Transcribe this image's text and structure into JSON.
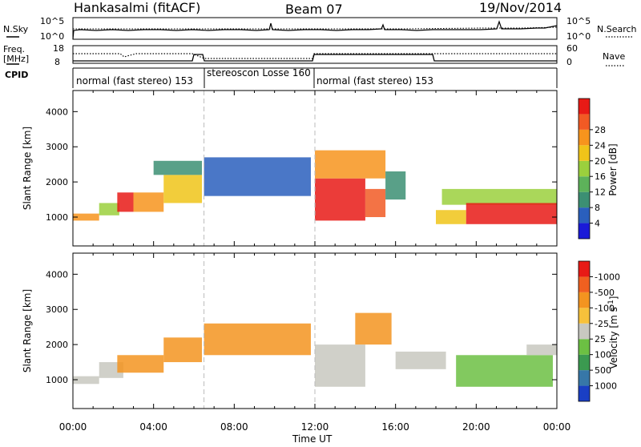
{
  "header": {
    "station": "Hankasalmi (fitACF)",
    "beam": "Beam 07",
    "date": "19/Nov/2014"
  },
  "strip": {
    "nsky_label": "N.Sky",
    "nsky_ticks": [
      "10^5",
      "10^0"
    ],
    "nsearch_label": "N.Search",
    "freq_label": "Freq.",
    "freq_unit": "[MHz]",
    "freq_ticks": [
      "18",
      "8"
    ],
    "nave_label": "Nave",
    "nave_ticks": [
      "60",
      "0"
    ],
    "cpid_label": "CPID",
    "cpid_segments": [
      {
        "label": "normal (fast stereo) 153",
        "start_h": 0,
        "end_h": 6.5
      },
      {
        "label": "stereoscon Losse 160",
        "start_h": 6.5,
        "end_h": 12
      },
      {
        "label": "normal (fast stereo) 153",
        "start_h": 12,
        "end_h": 24
      }
    ]
  },
  "chart_data": [
    {
      "type": "heatmap",
      "title": "",
      "xlabel": "Time UT",
      "ylabel": "Slant Range [km]",
      "xlim": [
        0,
        24
      ],
      "ylim": [
        180,
        4600
      ],
      "x_ticks": [
        "00:00",
        "04:00",
        "08:00",
        "12:00",
        "16:00",
        "20:00",
        "00:00"
      ],
      "y_ticks": [
        "1000",
        "2000",
        "3000",
        "4000"
      ],
      "y_tick_values": [
        1000,
        2000,
        3000,
        4000
      ],
      "colorbar": {
        "label": "Power [dB]",
        "ticks": [
          "4",
          "8",
          "12",
          "16",
          "20",
          "24",
          "28"
        ],
        "colors": [
          "#1a1ad8",
          "#2a5fbd",
          "#3c8f73",
          "#5db25a",
          "#9bd03d",
          "#f0c419",
          "#f7941d",
          "#f15a24",
          "#e81a16"
        ]
      },
      "echo_regions": [
        {
          "t0": 0.0,
          "t1": 1.3,
          "r0": 900,
          "r1": 1100,
          "level": 6
        },
        {
          "t0": 1.3,
          "t1": 2.3,
          "r0": 1050,
          "r1": 1400,
          "level": 4
        },
        {
          "t0": 2.2,
          "t1": 3.0,
          "r0": 1150,
          "r1": 1700,
          "level": 8
        },
        {
          "t0": 3.0,
          "t1": 4.5,
          "r0": 1150,
          "r1": 1700,
          "level": 6
        },
        {
          "t0": 4.5,
          "t1": 6.4,
          "r0": 1400,
          "r1": 2200,
          "level": 5
        },
        {
          "t0": 4.0,
          "t1": 6.4,
          "r0": 2200,
          "r1": 2600,
          "level": 2
        },
        {
          "t0": 6.5,
          "t1": 11.8,
          "r0": 1600,
          "r1": 2700,
          "level": 1
        },
        {
          "t0": 12.0,
          "t1": 14.5,
          "r0": 900,
          "r1": 2100,
          "level": 8
        },
        {
          "t0": 12.0,
          "t1": 15.5,
          "r0": 2100,
          "r1": 2900,
          "level": 6
        },
        {
          "t0": 14.5,
          "t1": 15.5,
          "r0": 1000,
          "r1": 1800,
          "level": 7
        },
        {
          "t0": 15.5,
          "t1": 16.5,
          "r0": 1500,
          "r1": 2300,
          "level": 2
        },
        {
          "t0": 18.0,
          "t1": 19.5,
          "r0": 800,
          "r1": 1200,
          "level": 5
        },
        {
          "t0": 18.3,
          "t1": 24.0,
          "r0": 1350,
          "r1": 1800,
          "level": 4
        },
        {
          "t0": 19.5,
          "t1": 24.0,
          "r0": 800,
          "r1": 1400,
          "level": 8
        }
      ]
    },
    {
      "type": "heatmap",
      "title": "",
      "xlabel": "Time UT",
      "ylabel": "Slant Range [km]",
      "xlim": [
        0,
        24
      ],
      "ylim": [
        180,
        4600
      ],
      "x_ticks": [
        "00:00",
        "04:00",
        "08:00",
        "12:00",
        "16:00",
        "20:00",
        "00:00"
      ],
      "y_ticks": [
        "1000",
        "2000",
        "3000",
        "4000"
      ],
      "y_tick_values": [
        1000,
        2000,
        3000,
        4000
      ],
      "colorbar": {
        "label": "Velocity [m s",
        "label_sup": "-1",
        "label_end": "]",
        "ticks": [
          "1000",
          "500",
          "100",
          "25",
          "-25",
          "-100",
          "-500",
          "-1000"
        ],
        "colors": [
          "#1a3fc4",
          "#3777a8",
          "#3b9a50",
          "#6cc043",
          "#c8c8c0",
          "#f7c13b",
          "#f39420",
          "#f06020",
          "#e81a16"
        ]
      },
      "echo_regions": [
        {
          "t0": 0.0,
          "t1": 1.3,
          "r0": 880,
          "r1": 1100,
          "level": 4
        },
        {
          "t0": 1.3,
          "t1": 2.5,
          "r0": 1050,
          "r1": 1500,
          "level": 4
        },
        {
          "t0": 2.2,
          "t1": 4.5,
          "r0": 1200,
          "r1": 1700,
          "level": 6
        },
        {
          "t0": 4.5,
          "t1": 6.4,
          "r0": 1500,
          "r1": 2200,
          "level": 6
        },
        {
          "t0": 6.5,
          "t1": 11.8,
          "r0": 1700,
          "r1": 2600,
          "level": 6
        },
        {
          "t0": 12.0,
          "t1": 14.5,
          "r0": 800,
          "r1": 2000,
          "level": 4
        },
        {
          "t0": 14.0,
          "t1": 15.8,
          "r0": 2000,
          "r1": 2900,
          "level": 6
        },
        {
          "t0": 16.0,
          "t1": 18.5,
          "r0": 1300,
          "r1": 1800,
          "level": 4
        },
        {
          "t0": 19.0,
          "t1": 23.8,
          "r0": 800,
          "r1": 1700,
          "level": 3
        },
        {
          "t0": 22.5,
          "t1": 24.0,
          "r0": 1700,
          "r1": 2000,
          "level": 4
        }
      ]
    }
  ]
}
